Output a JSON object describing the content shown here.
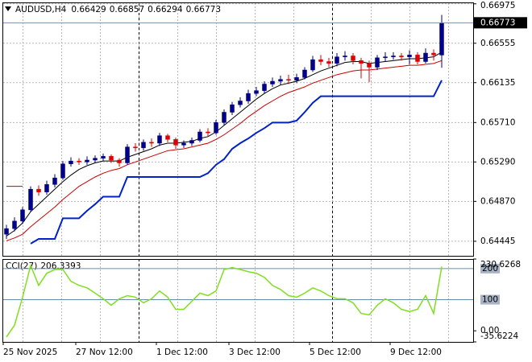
{
  "chart_data": {
    "type": "candlestick",
    "symbol": "AUDUSD,H4",
    "categories": [
      "25 Nov 2025",
      null,
      null,
      null,
      null,
      null,
      null,
      null,
      null,
      "27 Nov 12:00",
      null,
      null,
      null,
      null,
      null,
      null,
      null,
      null,
      null,
      "1 Dec 12:00",
      null,
      null,
      null,
      null,
      null,
      null,
      null,
      null,
      "3 Dec 12:00",
      null,
      null,
      null,
      null,
      null,
      null,
      null,
      null,
      null,
      "5 Dec 12:00",
      null,
      null,
      null,
      null,
      null,
      null,
      null,
      null,
      null,
      "9 Dec 12:00",
      null,
      null,
      null,
      null,
      null,
      null
    ],
    "candles": {
      "open": [
        0.6452,
        0.6458,
        0.6466,
        0.6478,
        0.65,
        0.6497,
        0.6505,
        0.6512,
        0.6527,
        0.653,
        0.6529,
        0.6531,
        0.6533,
        0.6535,
        0.6531,
        0.6528,
        0.6545,
        0.6544,
        0.655,
        0.6549,
        0.6557,
        0.6553,
        0.6547,
        0.6549,
        0.6552,
        0.6561,
        0.656,
        0.6571,
        0.6582,
        0.659,
        0.6594,
        0.6602,
        0.6605,
        0.6612,
        0.6615,
        0.6617,
        0.6616,
        0.6619,
        0.6627,
        0.6638,
        0.6636,
        0.6634,
        0.6641,
        0.6642,
        0.6637,
        0.6634,
        0.663,
        0.664,
        0.6641,
        0.6642,
        0.6641,
        0.6643,
        0.6636,
        0.6645,
        0.66429
      ],
      "high": [
        0.6462,
        0.647,
        0.6481,
        0.6503,
        0.6504,
        0.6509,
        0.6516,
        0.653,
        0.6534,
        0.6533,
        0.6535,
        0.6536,
        0.6538,
        0.6537,
        0.6533,
        0.6548,
        0.6549,
        0.6553,
        0.6554,
        0.656,
        0.6559,
        0.6555,
        0.6552,
        0.6555,
        0.6564,
        0.6565,
        0.6574,
        0.6585,
        0.6593,
        0.6598,
        0.6606,
        0.6609,
        0.6615,
        0.6619,
        0.6621,
        0.6622,
        0.6623,
        0.663,
        0.6642,
        0.6643,
        0.664,
        0.6645,
        0.6647,
        0.6645,
        0.664,
        0.6637,
        0.6643,
        0.6646,
        0.6646,
        0.6645,
        0.6648,
        0.6646,
        0.665,
        0.6649,
        0.66857
      ],
      "low": [
        0.6447,
        0.6455,
        0.6463,
        0.6476,
        0.6493,
        0.6494,
        0.6502,
        0.651,
        0.6524,
        0.6526,
        0.6526,
        0.6528,
        0.653,
        0.6528,
        0.6524,
        0.6526,
        0.654,
        0.6541,
        0.6545,
        0.6546,
        0.655,
        0.6543,
        0.6544,
        0.6546,
        0.655,
        0.6556,
        0.6558,
        0.6568,
        0.6579,
        0.6587,
        0.6591,
        0.6599,
        0.6602,
        0.6609,
        0.6611,
        0.6612,
        0.6613,
        0.6617,
        0.6625,
        0.6632,
        0.663,
        0.6631,
        0.6637,
        0.6633,
        0.6618,
        0.6614,
        0.6627,
        0.6636,
        0.6638,
        0.6637,
        0.6633,
        0.6633,
        0.6634,
        0.6637,
        0.66294
      ],
      "close": [
        0.6458,
        0.6466,
        0.6478,
        0.65,
        0.6497,
        0.6505,
        0.6512,
        0.6527,
        0.653,
        0.6529,
        0.6531,
        0.6533,
        0.6535,
        0.6531,
        0.6528,
        0.6545,
        0.6544,
        0.655,
        0.6549,
        0.6557,
        0.6553,
        0.6547,
        0.6549,
        0.6552,
        0.6561,
        0.656,
        0.6571,
        0.6582,
        0.659,
        0.6594,
        0.6602,
        0.6605,
        0.6612,
        0.6615,
        0.6617,
        0.6616,
        0.6619,
        0.6627,
        0.6638,
        0.6636,
        0.6634,
        0.6641,
        0.6642,
        0.6637,
        0.6634,
        0.663,
        0.664,
        0.6641,
        0.6642,
        0.6641,
        0.6643,
        0.6636,
        0.6645,
        0.6643,
        0.66773
      ]
    },
    "bull_color": "#00008b",
    "bear_color": "#e00000",
    "ylim": [
      0.6429,
      0.6699
    ],
    "yticks": [
      0.64445,
      {
        "value": 0.6487,
        "label": "0.64870"
      },
      {
        "value": 0.6529,
        "label": "0.65290"
      },
      {
        "value": 0.6571,
        "label": "0.65710"
      },
      0.66135,
      0.66555,
      0.66975
    ],
    "grid": true,
    "overlays": [
      {
        "color": "#000000",
        "values": [
          0.645,
          0.6456,
          0.6464,
          0.6476,
          0.6484,
          0.6492,
          0.65,
          0.6508,
          0.6515,
          0.6521,
          0.6525,
          0.6528,
          0.653,
          0.653,
          0.653,
          0.6534,
          0.6537,
          0.654,
          0.6543,
          0.6547,
          0.6549,
          0.6549,
          0.655,
          0.6551,
          0.6554,
          0.6556,
          0.6561,
          0.6568,
          0.6575,
          0.6582,
          0.6589,
          0.6596,
          0.6602,
          0.6607,
          0.6611,
          0.6613,
          0.6615,
          0.6618,
          0.6622,
          0.6626,
          0.6629,
          0.6632,
          0.6635,
          0.6636,
          0.6636,
          0.6634,
          0.6635,
          0.6636,
          0.6637,
          0.6638,
          0.6639,
          0.6639,
          0.664,
          0.6641,
          0.6646
        ]
      },
      {
        "color": "#cc0000",
        "values": [
          0.6445,
          0.6448,
          0.6452,
          0.646,
          0.6467,
          0.6474,
          0.6481,
          0.6489,
          0.6496,
          0.6503,
          0.6508,
          0.6513,
          0.6517,
          0.652,
          0.6522,
          0.6526,
          0.6529,
          0.6532,
          0.6535,
          0.6538,
          0.6541,
          0.6542,
          0.6543,
          0.6545,
          0.6547,
          0.6549,
          0.6553,
          0.6558,
          0.6564,
          0.657,
          0.6577,
          0.6583,
          0.6589,
          0.6594,
          0.6599,
          0.6603,
          0.6606,
          0.6609,
          0.6613,
          0.6616,
          0.6619,
          0.6622,
          0.6624,
          0.6626,
          0.6627,
          0.6627,
          0.6628,
          0.6629,
          0.663,
          0.6631,
          0.6632,
          0.6632,
          0.6633,
          0.6634,
          0.6637
        ]
      },
      {
        "color": "#0022cc",
        "values": [
          null,
          null,
          null,
          0.6442,
          0.6447,
          0.6447,
          0.6447,
          0.6469,
          0.6469,
          0.6469,
          0.6477,
          0.6484,
          0.6492,
          0.6492,
          0.6492,
          0.6513,
          0.6513,
          0.6513,
          0.6513,
          0.6513,
          0.6513,
          0.6513,
          0.6513,
          0.6513,
          0.6513,
          0.6517,
          0.6526,
          0.6532,
          0.6543,
          0.6549,
          0.6554,
          0.656,
          0.6565,
          0.6571,
          0.6571,
          0.6571,
          0.6573,
          0.6582,
          0.6592,
          0.6599,
          0.6599,
          0.6599,
          0.6599,
          0.6599,
          0.6599,
          0.6599,
          0.6599,
          0.6599,
          0.6599,
          0.6599,
          0.6599,
          0.6599,
          0.6599,
          0.6599,
          0.6616
        ]
      },
      {
        "color": "#cc0000",
        "values": [
          0.6503,
          0.6503,
          0.6503,
          null,
          null,
          null,
          null,
          null,
          null,
          null,
          null,
          null,
          null,
          null,
          null,
          null,
          null,
          null,
          null,
          null,
          null,
          null,
          null,
          null,
          null,
          null,
          null,
          null,
          null,
          null,
          null,
          null,
          null,
          null,
          null,
          null,
          null,
          null,
          null,
          null,
          null,
          null,
          null,
          null,
          null,
          null,
          null,
          null,
          null,
          null,
          null,
          null,
          null,
          null,
          null
        ]
      }
    ],
    "indicator": {
      "type": "line",
      "title": "CCI(27)",
      "color": "#7fe020",
      "values": [
        -20,
        18,
        108,
        210,
        146,
        185,
        197,
        197,
        159,
        146,
        138,
        121,
        103,
        82,
        103,
        113,
        108,
        90,
        103,
        128,
        108,
        69,
        69,
        95,
        121,
        113,
        128,
        197,
        203,
        197,
        190,
        185,
        172,
        146,
        133,
        113,
        108,
        121,
        138,
        128,
        113,
        103,
        103,
        90,
        56,
        51,
        82,
        103,
        90,
        69,
        62,
        69,
        113,
        56,
        206.3393
      ],
      "ylim": [
        -35.6224,
        230.6268
      ],
      "yticks": [
        -35.6224,
        {
          "value": 0,
          "label": "0.00"
        },
        230.6268
      ],
      "levels": [
        100,
        200
      ]
    }
  }
}
